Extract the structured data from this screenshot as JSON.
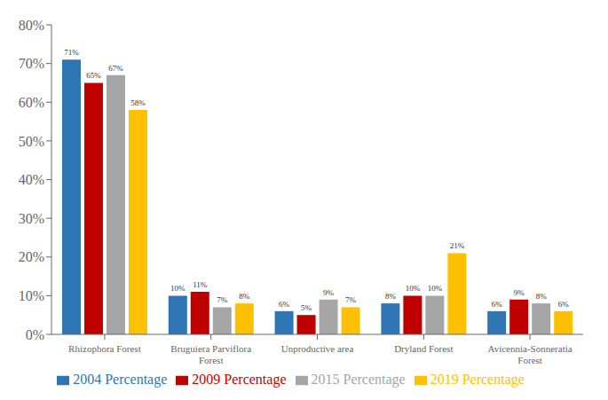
{
  "chart_data": {
    "type": "bar",
    "categories": [
      "Rhizophora Forest",
      "Bruguiera Parviflora\nForest",
      "Unproductive area",
      "Dryland Forest",
      "Avicennia-Sonneratia\nForest"
    ],
    "series": [
      {
        "name": "2004 Percentage",
        "color": "#2E75B6",
        "values": [
          71,
          10,
          6,
          8,
          6
        ],
        "value_labels": [
          "71%",
          "10%",
          "6%",
          "8%",
          "6%"
        ]
      },
      {
        "name": "2009 Percentage",
        "color": "#C00000",
        "values": [
          65,
          11,
          5,
          10,
          9
        ],
        "value_labels": [
          "65%",
          "11%",
          "5%",
          "10%",
          "9%"
        ]
      },
      {
        "name": "2015 Percentage",
        "color": "#A6A6A6",
        "values": [
          67,
          7,
          9,
          10,
          8
        ],
        "value_labels": [
          "67%",
          "7%",
          "9%",
          "10%",
          "8%"
        ]
      },
      {
        "name": "2019 Percentage",
        "color": "#FFC000",
        "values": [
          58,
          8,
          7,
          21,
          6
        ],
        "value_labels": [
          "58%",
          "8%",
          "7%",
          "21%",
          "6%"
        ]
      }
    ],
    "ylim": [
      0,
      80
    ],
    "yticks": [
      {
        "value": 0,
        "label": "0%"
      },
      {
        "value": 10,
        "label": "10%"
      },
      {
        "value": 20,
        "label": "20%"
      },
      {
        "value": 30,
        "label": "30%"
      },
      {
        "value": 40,
        "label": "40%"
      },
      {
        "value": 50,
        "label": "50%"
      },
      {
        "value": 60,
        "label": "60%"
      },
      {
        "value": 70,
        "label": "70%"
      },
      {
        "value": 80,
        "label": "80%"
      }
    ],
    "grid": false,
    "legend": "bottom",
    "data_labels": true
  }
}
